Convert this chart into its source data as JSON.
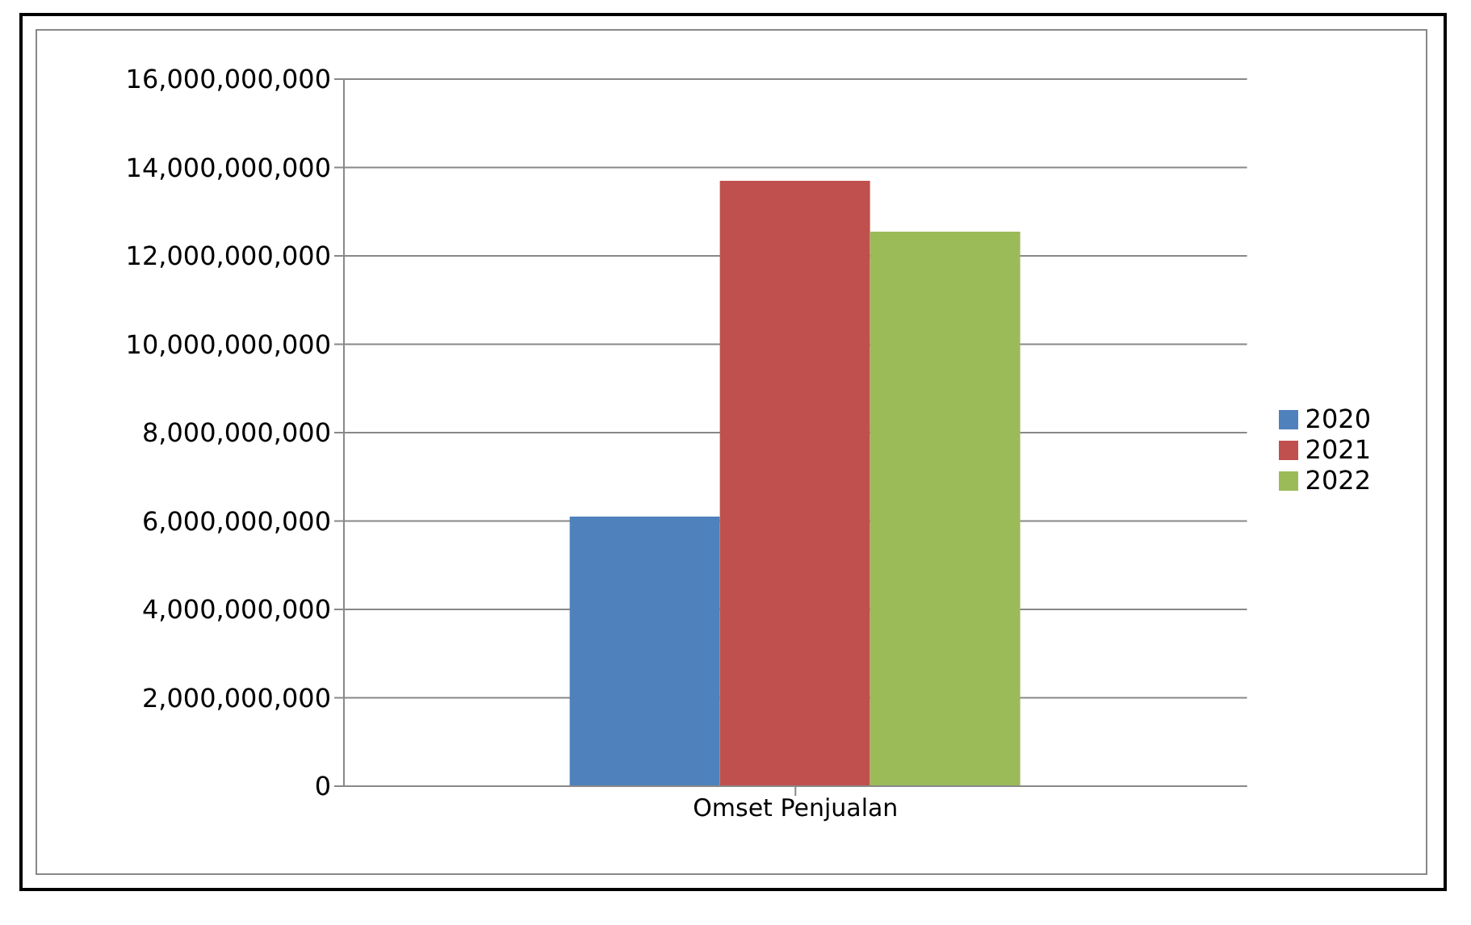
{
  "chart_data": {
    "type": "bar",
    "categories": [
      "Omset Penjualan"
    ],
    "series": [
      {
        "name": "2020",
        "color": "#4f81bd",
        "values": [
          6100000000
        ]
      },
      {
        "name": "2021",
        "color": "#c0504d",
        "values": [
          13700000000
        ]
      },
      {
        "name": "2022",
        "color": "#9bbb59",
        "values": [
          12550000000
        ]
      }
    ],
    "ylim": [
      0,
      16000000000
    ],
    "yticks": [
      0,
      {
        "value": 2000000000,
        "label": "2,000,000,000"
      },
      {
        "value": 4000000000,
        "label": "4,000,000,000"
      },
      {
        "value": 6000000000,
        "label": "6,000,000,000"
      },
      {
        "value": 8000000000,
        "label": "8,000,000,000"
      },
      {
        "value": 10000000000,
        "label": "10,000,000,000"
      },
      {
        "value": 12000000000,
        "label": "12,000,000,000"
      },
      {
        "value": 14000000000,
        "label": "14,000,000,000"
      },
      {
        "value": 16000000000,
        "label": "16,000,000,000"
      }
    ],
    "grid": "y",
    "legend": "right"
  }
}
